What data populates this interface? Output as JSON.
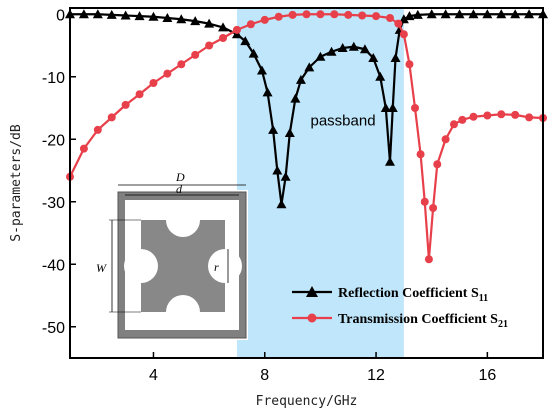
{
  "chart_data": {
    "type": "line",
    "xlabel": "Frequency/GHz",
    "ylabel": "S-parameters/dB",
    "xlim": [
      1,
      18
    ],
    "ylim": [
      -55,
      1
    ],
    "x_ticks": [
      4,
      8,
      12,
      16
    ],
    "y_ticks": [
      0,
      -10,
      -20,
      -30,
      -40,
      -50
    ],
    "grid": false,
    "legend_position": "bottom-right",
    "passband": {
      "x_range": [
        7,
        13
      ],
      "label": "passband",
      "color": "#bfe6fa"
    },
    "series": [
      {
        "name": "Reflection Coefficient S",
        "name_sub": "11",
        "color": "#000000",
        "marker": "triangle",
        "x": [
          1,
          1.5,
          2,
          2.5,
          3,
          3.5,
          4,
          4.5,
          5,
          5.5,
          6,
          6.5,
          7,
          7.3,
          7.6,
          7.9,
          8.1,
          8.3,
          8.45,
          8.6,
          8.75,
          8.9,
          9.1,
          9.3,
          9.6,
          10,
          10.4,
          10.8,
          11.2,
          11.6,
          11.9,
          12.15,
          12.35,
          12.5,
          12.6,
          12.7,
          12.85,
          13.0,
          13.2,
          13.5,
          14,
          14.5,
          15,
          15.5,
          16,
          16.5,
          17,
          17.5,
          18
        ],
        "y": [
          0,
          0,
          0,
          -0.1,
          -0.2,
          -0.3,
          -0.4,
          -0.6,
          -0.8,
          -1.1,
          -1.5,
          -2.1,
          -3.2,
          -4.3,
          -6.3,
          -9,
          -12.5,
          -18.5,
          -25,
          -30.4,
          -26,
          -19,
          -13.5,
          -10.5,
          -8.5,
          -6.8,
          -6.0,
          -5.4,
          -5.2,
          -5.6,
          -7.0,
          -10.0,
          -15.0,
          -23.6,
          -15.0,
          -7.0,
          -2.5,
          -0.8,
          -0.3,
          -0.1,
          0,
          0,
          0,
          0,
          0,
          0,
          0,
          0,
          0
        ]
      },
      {
        "name": "Transmission Coefficient S",
        "name_sub": "21",
        "color": "#e8404a",
        "marker": "circle",
        "x": [
          1,
          1.5,
          2,
          2.5,
          3,
          3.5,
          4,
          4.5,
          5,
          5.5,
          6,
          6.5,
          7,
          7.5,
          8,
          8.5,
          9,
          9.5,
          10,
          10.5,
          11,
          11.5,
          12,
          12.5,
          12.8,
          13.0,
          13.2,
          13.4,
          13.6,
          13.75,
          13.9,
          14.05,
          14.2,
          14.5,
          14.8,
          15.1,
          15.5,
          16,
          16.5,
          17,
          17.5,
          18
        ],
        "y": [
          -26,
          -21.5,
          -18.5,
          -16.5,
          -14.5,
          -12.8,
          -11,
          -9.5,
          -8,
          -6.5,
          -5,
          -3.8,
          -2.5,
          -1.6,
          -0.9,
          -0.4,
          -0.1,
          0,
          0,
          0,
          -0.1,
          -0.2,
          -0.3,
          -0.6,
          -1.5,
          -3.2,
          -8.0,
          -15.0,
          -22.4,
          -30.0,
          -39.2,
          -31.0,
          -24.0,
          -20.0,
          -17.6,
          -16.9,
          -16.4,
          -16.2,
          -16.0,
          -16.1,
          -16.5,
          -16.6
        ]
      }
    ],
    "inset": {
      "labels": {
        "outer": "D",
        "inner": "d",
        "height": "W",
        "radius": "r"
      }
    }
  }
}
